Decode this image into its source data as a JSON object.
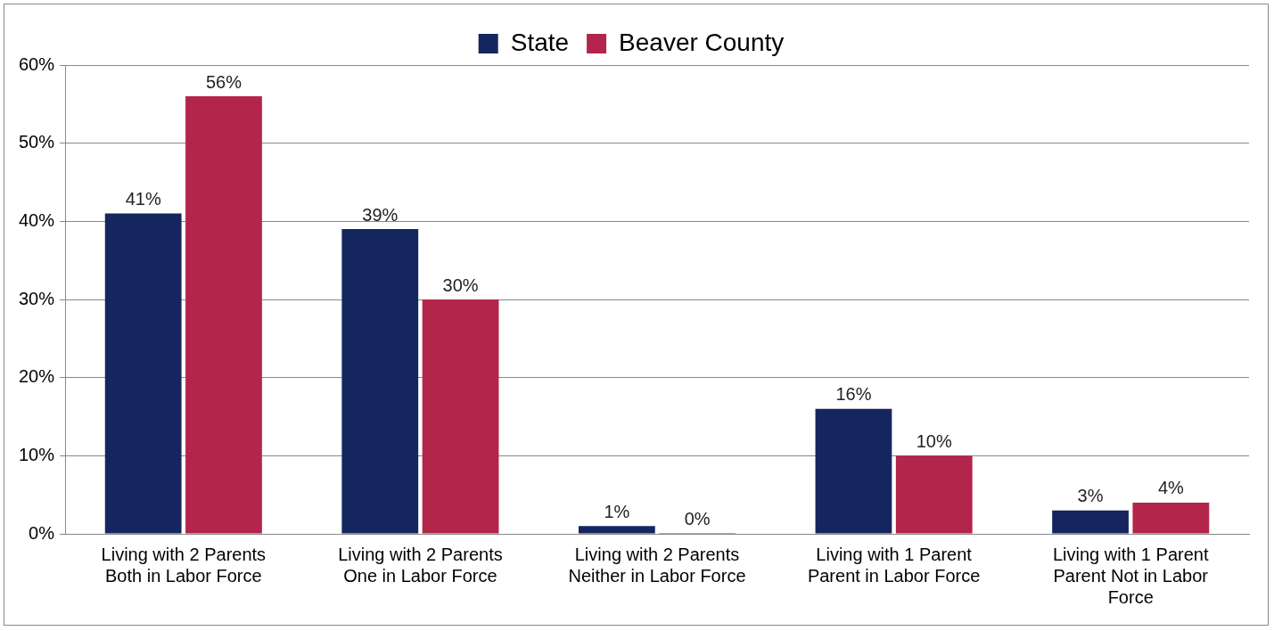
{
  "chart_data": {
    "type": "bar",
    "categories": [
      "Living with 2 Parents Both in Labor Force",
      "Living with 2 Parents One in Labor Force",
      "Living with 2 Parents Neither in Labor Force",
      "Living with 1 Parent Parent in Labor Force",
      "Living with 1 Parent Parent Not in Labor Force"
    ],
    "series": [
      {
        "name": "State",
        "color": "#15265f",
        "values": [
          41,
          39,
          1,
          16,
          3
        ],
        "value_labels": [
          "41%",
          "39%",
          "1%",
          "16%",
          "3%"
        ]
      },
      {
        "name": "Beaver County",
        "color": "#b3254b",
        "values": [
          56,
          30,
          0,
          10,
          4
        ],
        "value_labels": [
          "56%",
          "30%",
          "0%",
          "10%",
          "4%"
        ]
      }
    ],
    "ylim": [
      0,
      60
    ],
    "yticks": [
      {
        "value": 0,
        "label": "0%"
      },
      {
        "value": 10,
        "label": "10%"
      },
      {
        "value": 20,
        "label": "20%"
      },
      {
        "value": 30,
        "label": "30%"
      },
      {
        "value": 40,
        "label": "40%"
      },
      {
        "value": 50,
        "label": "50%"
      },
      {
        "value": 60,
        "label": "60%"
      }
    ],
    "grid": "y",
    "legend": "top"
  }
}
